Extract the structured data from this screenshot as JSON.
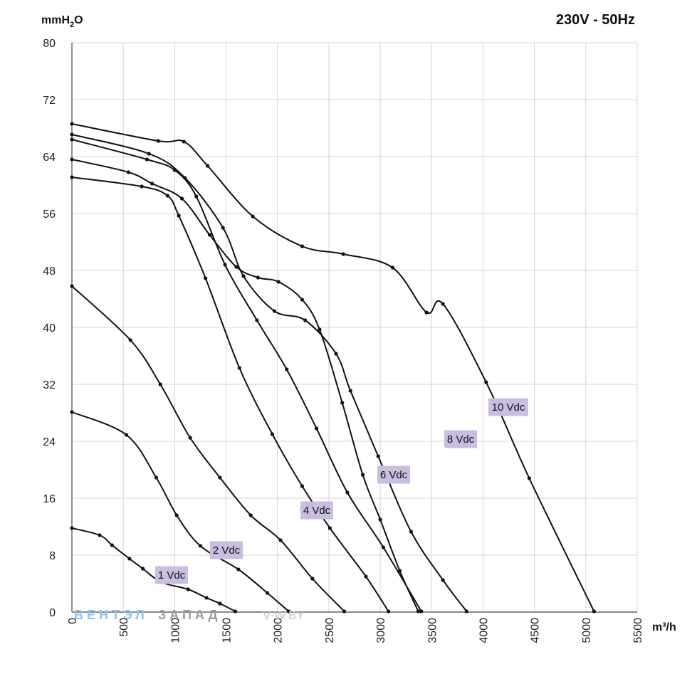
{
  "title": "230V - 50Hz",
  "watermark": {
    "part1": "ВЕНТЭЛ",
    "part2": "ЗАПАД",
    "site": "V-W.BY"
  },
  "chart_data": {
    "type": "line",
    "title": "230V - 50Hz",
    "xlabel": "m³/h",
    "ylabel": "mmH₂O",
    "xlim": [
      0,
      5500
    ],
    "ylim": [
      0,
      80
    ],
    "x_ticks": [
      0,
      500,
      1000,
      1500,
      2000,
      2500,
      3000,
      3500,
      4000,
      4500,
      5000,
      5500
    ],
    "y_ticks": [
      0,
      8,
      16,
      24,
      32,
      40,
      48,
      56,
      64,
      72,
      80
    ],
    "grid": true,
    "series_label_fill": "#c9bde0",
    "line_color": "#111111",
    "grid_color": "#d4d4d4",
    "series": [
      {
        "name": "1 Vdc",
        "points": [
          [
            0,
            11.8
          ],
          [
            270,
            10.8
          ],
          [
            390,
            9.4
          ],
          [
            560,
            7.5
          ],
          [
            690,
            6.1
          ],
          [
            870,
            4.2
          ],
          [
            1130,
            3.2
          ],
          [
            1310,
            2.0
          ],
          [
            1440,
            1.2
          ],
          [
            1590,
            0.1
          ]
        ]
      },
      {
        "name": "2 Vdc",
        "points": [
          [
            0,
            28.1
          ],
          [
            530,
            24.9
          ],
          [
            820,
            18.9
          ],
          [
            1020,
            13.6
          ],
          [
            1250,
            9.3
          ],
          [
            1620,
            6.0
          ],
          [
            1900,
            2.7
          ],
          [
            2110,
            0.1
          ]
        ]
      },
      {
        "name": "4 Vdc",
        "points": [
          [
            0,
            45.8
          ],
          [
            570,
            38.2
          ],
          [
            860,
            32.0
          ],
          [
            1150,
            24.5
          ],
          [
            1440,
            18.9
          ],
          [
            1740,
            13.6
          ],
          [
            2030,
            10.1
          ],
          [
            2340,
            4.7
          ],
          [
            2650,
            0.1
          ]
        ]
      },
      {
        "name": "6 Vdc",
        "points": [
          [
            0,
            61.1
          ],
          [
            680,
            59.8
          ],
          [
            930,
            58.5
          ],
          [
            1040,
            55.7
          ],
          [
            1300,
            46.9
          ],
          [
            1630,
            34.3
          ],
          [
            1950,
            25.0
          ],
          [
            2240,
            17.7
          ],
          [
            2510,
            11.8
          ],
          [
            2860,
            5.0
          ],
          [
            3080,
            0.1
          ]
        ]
      },
      {
        "name": "8 Vdc",
        "points": [
          [
            0,
            63.6
          ],
          [
            550,
            61.8
          ],
          [
            780,
            60.2
          ],
          [
            1070,
            58.1
          ],
          [
            1340,
            53.0
          ],
          [
            1600,
            48.5
          ],
          [
            1810,
            47.0
          ],
          [
            2010,
            46.4
          ],
          [
            2240,
            43.9
          ],
          [
            2410,
            39.7
          ],
          [
            2630,
            29.4
          ],
          [
            2830,
            19.3
          ],
          [
            3000,
            13.0
          ],
          [
            3190,
            5.8
          ],
          [
            3370,
            0.1
          ]
        ]
      },
      {
        "name": "",
        "points": [
          [
            0,
            66.4
          ],
          [
            730,
            63.6
          ],
          [
            1000,
            62.1
          ],
          [
            1210,
            58.4
          ],
          [
            1490,
            48.8
          ],
          [
            1800,
            41.0
          ],
          [
            2090,
            34.1
          ],
          [
            2380,
            25.8
          ],
          [
            2680,
            16.8
          ],
          [
            3030,
            9.1
          ],
          [
            3400,
            0.1
          ]
        ]
      },
      {
        "name": "",
        "points": [
          [
            0,
            67.1
          ],
          [
            750,
            64.4
          ],
          [
            1100,
            61.0
          ],
          [
            1470,
            54.0
          ],
          [
            1670,
            47.2
          ],
          [
            1970,
            42.3
          ],
          [
            2270,
            41.0
          ],
          [
            2570,
            36.3
          ],
          [
            2710,
            31.1
          ],
          [
            2980,
            21.9
          ],
          [
            3300,
            11.3
          ],
          [
            3610,
            4.5
          ],
          [
            3840,
            0.1
          ]
        ]
      },
      {
        "name": "10 Vdc",
        "points": [
          [
            0,
            68.6
          ],
          [
            840,
            66.2
          ],
          [
            1090,
            66.1
          ],
          [
            1320,
            62.7
          ],
          [
            1760,
            55.6
          ],
          [
            2240,
            51.4
          ],
          [
            2640,
            50.3
          ],
          [
            3120,
            48.4
          ],
          [
            3450,
            42.1
          ],
          [
            3610,
            43.3
          ],
          [
            4030,
            32.3
          ],
          [
            4450,
            18.8
          ],
          [
            5080,
            0.1
          ]
        ]
      }
    ]
  }
}
